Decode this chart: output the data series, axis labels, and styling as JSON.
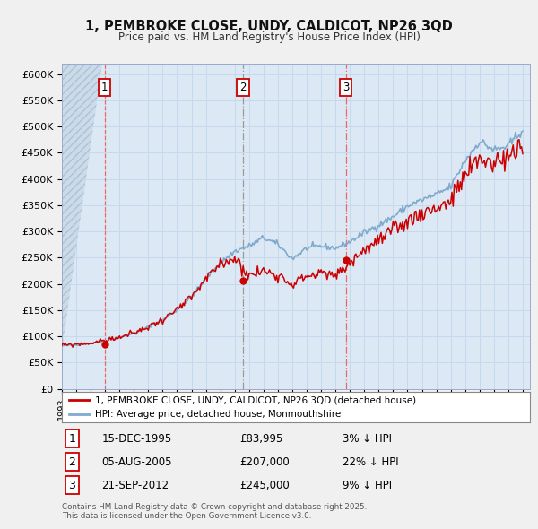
{
  "title": "1, PEMBROKE CLOSE, UNDY, CALDICOT, NP26 3QD",
  "subtitle": "Price paid vs. HM Land Registry's House Price Index (HPI)",
  "ylim": [
    0,
    620000
  ],
  "yticks": [
    0,
    50000,
    100000,
    150000,
    200000,
    250000,
    300000,
    350000,
    400000,
    450000,
    500000,
    550000,
    600000
  ],
  "ytick_labels": [
    "£0",
    "£50K",
    "£100K",
    "£150K",
    "£200K",
    "£250K",
    "£300K",
    "£350K",
    "£400K",
    "£450K",
    "£500K",
    "£550K",
    "£600K"
  ],
  "fig_bg_color": "#f0f0f0",
  "plot_bg_color": "#dce9f5",
  "hpi_color": "#7faacc",
  "price_color": "#cc0000",
  "vline1_color": "#ff8888",
  "vline1_style": "--",
  "vline2_color": "#aaaaaa",
  "vline2_style": "-.",
  "vline3_color": "#ff8888",
  "vline3_style": "-.",
  "grid_color": "#c5d8ed",
  "legend_label_price": "1, PEMBROKE CLOSE, UNDY, CALDICOT, NP26 3QD (detached house)",
  "legend_label_hpi": "HPI: Average price, detached house, Monmouthshire",
  "sale1_date": "15-DEC-1995",
  "sale1_price": 83995,
  "sale1_x": 1995.96,
  "sale1_pct": "3%",
  "sale2_date": "05-AUG-2005",
  "sale2_price": 207000,
  "sale2_x": 2005.58,
  "sale2_pct": "22%",
  "sale3_date": "21-SEP-2012",
  "sale3_price": 245000,
  "sale3_x": 2012.72,
  "sale3_pct": "9%",
  "footnote": "Contains HM Land Registry data © Crown copyright and database right 2025.\nThis data is licensed under the Open Government Licence v3.0.",
  "hpi_anchors_y": [
    1993.0,
    1994.0,
    1995.0,
    1996.0,
    1997.0,
    1998.0,
    1999.0,
    2000.0,
    2001.0,
    2002.0,
    2003.0,
    2004.0,
    2005.0,
    2006.0,
    2007.0,
    2008.0,
    2009.0,
    2010.0,
    2011.0,
    2012.0,
    2013.0,
    2014.0,
    2015.0,
    2016.0,
    2017.0,
    2018.0,
    2019.0,
    2020.0,
    2021.0,
    2022.0,
    2023.0,
    2024.0,
    2025.0
  ],
  "hpi_anchors_v": [
    82000,
    84000,
    87000,
    92000,
    98000,
    106000,
    118000,
    132000,
    150000,
    175000,
    210000,
    240000,
    262000,
    272000,
    288000,
    275000,
    248000,
    268000,
    272000,
    268000,
    280000,
    298000,
    312000,
    328000,
    348000,
    360000,
    370000,
    385000,
    435000,
    472000,
    455000,
    462000,
    495000
  ],
  "price_anchors_y": [
    1993.0,
    1994.0,
    1995.0,
    1996.0,
    1997.0,
    1998.0,
    1999.0,
    2000.0,
    2001.0,
    2002.0,
    2003.0,
    2004.0,
    2005.0,
    2006.0,
    2007.0,
    2008.0,
    2009.0,
    2010.0,
    2011.0,
    2012.0,
    2013.0,
    2014.0,
    2015.0,
    2016.0,
    2017.0,
    2018.0,
    2019.0,
    2020.0,
    2021.0,
    2022.0,
    2023.0,
    2024.0,
    2025.0
  ],
  "price_anchors_v": [
    83000,
    85000,
    87000,
    92000,
    98000,
    106000,
    118000,
    132000,
    150000,
    174000,
    208000,
    238000,
    250000,
    215000,
    225000,
    218000,
    200000,
    215000,
    220000,
    215000,
    240000,
    265000,
    282000,
    300000,
    320000,
    335000,
    345000,
    358000,
    405000,
    438000,
    430000,
    445000,
    455000
  ]
}
